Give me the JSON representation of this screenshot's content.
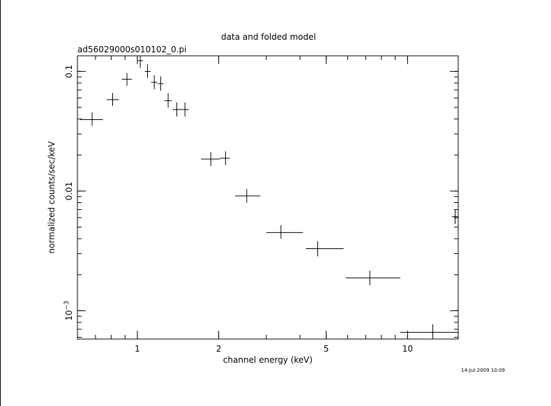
{
  "chart_data": {
    "type": "scatter",
    "title": "data and folded model",
    "subtitle": "ad56029000s010102_0.pi",
    "xlabel": "channel energy (keV)",
    "ylabel": "normalized counts/sec/keV",
    "x_scale": "log",
    "y_scale": "log",
    "xlim": [
      0.6,
      15.4
    ],
    "ylim": [
      0.00058,
      0.135
    ],
    "grid": false,
    "x_ticks": [
      {
        "value": 1,
        "label": "1"
      },
      {
        "value": 2,
        "label": "2"
      },
      {
        "value": 5,
        "label": "5"
      },
      {
        "value": 10,
        "label": "10"
      }
    ],
    "y_ticks": [
      {
        "value": 0.1,
        "label": "0.1"
      },
      {
        "value": 0.01,
        "label": "0.01"
      },
      {
        "value": 0.001,
        "label": "10^-3",
        "base": "10",
        "exponent": "−3"
      }
    ],
    "points": [
      {
        "x": 0.68,
        "y": 0.0395,
        "xlo": 0.615,
        "xhi": 0.745,
        "ylo": 0.035,
        "yhi": 0.0455
      },
      {
        "x": 0.81,
        "y": 0.058,
        "xlo": 0.77,
        "xhi": 0.855,
        "ylo": 0.0515,
        "yhi": 0.066
      },
      {
        "x": 0.915,
        "y": 0.086,
        "xlo": 0.875,
        "xhi": 0.955,
        "ylo": 0.076,
        "yhi": 0.097
      },
      {
        "x": 1.025,
        "y": 0.123,
        "xlo": 1.0,
        "xhi": 1.05,
        "ylo": 0.107,
        "yhi": 0.14
      },
      {
        "x": 1.09,
        "y": 0.1,
        "xlo": 1.065,
        "xhi": 1.12,
        "ylo": 0.088,
        "yhi": 0.115
      },
      {
        "x": 1.155,
        "y": 0.081,
        "xlo": 1.125,
        "xhi": 1.185,
        "ylo": 0.071,
        "yhi": 0.093
      },
      {
        "x": 1.22,
        "y": 0.079,
        "xlo": 1.19,
        "xhi": 1.25,
        "ylo": 0.069,
        "yhi": 0.091
      },
      {
        "x": 1.3,
        "y": 0.057,
        "xlo": 1.26,
        "xhi": 1.34,
        "ylo": 0.05,
        "yhi": 0.066
      },
      {
        "x": 1.4,
        "y": 0.048,
        "xlo": 1.35,
        "xhi": 1.45,
        "ylo": 0.042,
        "yhi": 0.055
      },
      {
        "x": 1.5,
        "y": 0.048,
        "xlo": 1.45,
        "xhi": 1.55,
        "ylo": 0.042,
        "yhi": 0.055
      },
      {
        "x": 1.87,
        "y": 0.0185,
        "xlo": 1.72,
        "xhi": 2.02,
        "ylo": 0.0162,
        "yhi": 0.0212
      },
      {
        "x": 2.12,
        "y": 0.0188,
        "xlo": 2.02,
        "xhi": 2.2,
        "ylo": 0.0165,
        "yhi": 0.0215
      },
      {
        "x": 2.54,
        "y": 0.0091,
        "xlo": 2.3,
        "xhi": 2.85,
        "ylo": 0.008,
        "yhi": 0.0104
      },
      {
        "x": 3.4,
        "y": 0.0045,
        "xlo": 3.0,
        "xhi": 4.1,
        "ylo": 0.004,
        "yhi": 0.0052
      },
      {
        "x": 4.65,
        "y": 0.0033,
        "xlo": 4.2,
        "xhi": 5.8,
        "ylo": 0.00285,
        "yhi": 0.0038
      },
      {
        "x": 7.25,
        "y": 0.00188,
        "xlo": 5.9,
        "xhi": 9.4,
        "ylo": 0.00163,
        "yhi": 0.00216
      },
      {
        "x": 12.4,
        "y": 0.00066,
        "xlo": 9.4,
        "xhi": 18.5,
        "ylo": 0.00057,
        "yhi": 0.00077
      },
      {
        "x": 15.0,
        "y": 0.0061,
        "xlo": 14.6,
        "xhi": 15.4,
        "ylo": 0.0053,
        "yhi": 0.007
      }
    ],
    "line_color": "#000000"
  },
  "timestamp": "14-Jul-2009 10:09"
}
